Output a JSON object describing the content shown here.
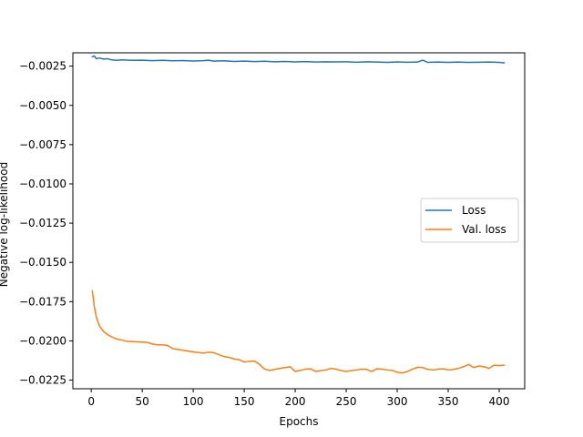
{
  "chart_data": {
    "type": "line",
    "title": "",
    "xlabel": "Epochs",
    "ylabel": "Negative log-likelihood",
    "xlim": [
      -18,
      425
    ],
    "ylim": [
      -0.02305,
      -0.00165
    ],
    "xticks": [
      0,
      50,
      100,
      150,
      200,
      250,
      300,
      350,
      400
    ],
    "xtick_labels": [
      "0",
      "50",
      "100",
      "150",
      "200",
      "250",
      "300",
      "350",
      "400"
    ],
    "yticks": [
      -0.0025,
      -0.005,
      -0.0075,
      -0.01,
      -0.0125,
      -0.015,
      -0.0175,
      -0.02,
      -0.0225
    ],
    "ytick_labels": [
      "−0.0025",
      "−0.0050",
      "−0.0075",
      "−0.0100",
      "−0.0125",
      "−0.0150",
      "−0.0175",
      "−0.0200",
      "−0.0225"
    ],
    "grid": false,
    "legend_position": "center-right",
    "series": [
      {
        "name": "Loss",
        "color": "#1f77b4",
        "x": [
          1,
          3,
          5,
          8,
          12,
          16,
          20,
          25,
          30,
          40,
          50,
          60,
          70,
          80,
          90,
          100,
          110,
          115,
          120,
          130,
          140,
          150,
          160,
          170,
          180,
          190,
          200,
          210,
          220,
          230,
          240,
          250,
          260,
          270,
          280,
          290,
          300,
          310,
          320,
          325,
          330,
          340,
          350,
          360,
          370,
          380,
          390,
          400,
          405
        ],
        "y": [
          -0.0019,
          -0.00185,
          -0.00203,
          -0.00198,
          -0.00205,
          -0.00203,
          -0.0021,
          -0.00213,
          -0.0021,
          -0.00213,
          -0.00212,
          -0.00215,
          -0.00213,
          -0.00216,
          -0.00214,
          -0.00217,
          -0.00215,
          -0.00212,
          -0.00218,
          -0.00216,
          -0.0022,
          -0.00218,
          -0.00221,
          -0.00219,
          -0.00222,
          -0.0022,
          -0.00223,
          -0.00221,
          -0.00224,
          -0.00222,
          -0.00223,
          -0.00222,
          -0.00225,
          -0.00222,
          -0.00224,
          -0.00226,
          -0.00223,
          -0.00225,
          -0.00224,
          -0.00212,
          -0.00226,
          -0.00224,
          -0.00226,
          -0.00224,
          -0.00226,
          -0.00225,
          -0.00224,
          -0.00226,
          -0.00229
        ]
      },
      {
        "name": "Val. loss",
        "color": "#ff7f0e",
        "x": [
          1,
          3,
          5,
          8,
          12,
          16,
          20,
          25,
          30,
          35,
          40,
          50,
          55,
          60,
          65,
          70,
          75,
          80,
          90,
          100,
          110,
          115,
          120,
          130,
          135,
          140,
          145,
          150,
          155,
          160,
          165,
          170,
          175,
          180,
          185,
          190,
          195,
          200,
          205,
          210,
          215,
          220,
          225,
          230,
          235,
          240,
          245,
          250,
          255,
          260,
          265,
          270,
          275,
          280,
          285,
          290,
          295,
          300,
          305,
          310,
          315,
          320,
          325,
          330,
          335,
          340,
          345,
          350,
          355,
          360,
          365,
          370,
          375,
          380,
          385,
          390,
          395,
          400,
          405
        ],
        "y": [
          -0.0168,
          -0.0178,
          -0.0185,
          -0.01905,
          -0.0194,
          -0.0196,
          -0.01975,
          -0.01988,
          -0.01995,
          -0.02003,
          -0.02005,
          -0.02008,
          -0.0201,
          -0.0202,
          -0.02025,
          -0.02025,
          -0.0203,
          -0.0205,
          -0.0206,
          -0.0207,
          -0.02078,
          -0.02072,
          -0.02075,
          -0.021,
          -0.02105,
          -0.02115,
          -0.0212,
          -0.02135,
          -0.0213,
          -0.02128,
          -0.0215,
          -0.0218,
          -0.02188,
          -0.02182,
          -0.02175,
          -0.0217,
          -0.02165,
          -0.02195,
          -0.02188,
          -0.0218,
          -0.02178,
          -0.02195,
          -0.0219,
          -0.02185,
          -0.02175,
          -0.0218,
          -0.0219,
          -0.02195,
          -0.0219,
          -0.02185,
          -0.0218,
          -0.02182,
          -0.02195,
          -0.02178,
          -0.0218,
          -0.02185,
          -0.02188,
          -0.022,
          -0.02205,
          -0.02195,
          -0.0218,
          -0.02168,
          -0.0217,
          -0.02182,
          -0.02185,
          -0.0218,
          -0.02178,
          -0.02185,
          -0.02182,
          -0.02175,
          -0.02165,
          -0.0215,
          -0.0217,
          -0.0216,
          -0.02165,
          -0.02175,
          -0.02155,
          -0.02158,
          -0.02155
        ]
      }
    ]
  }
}
